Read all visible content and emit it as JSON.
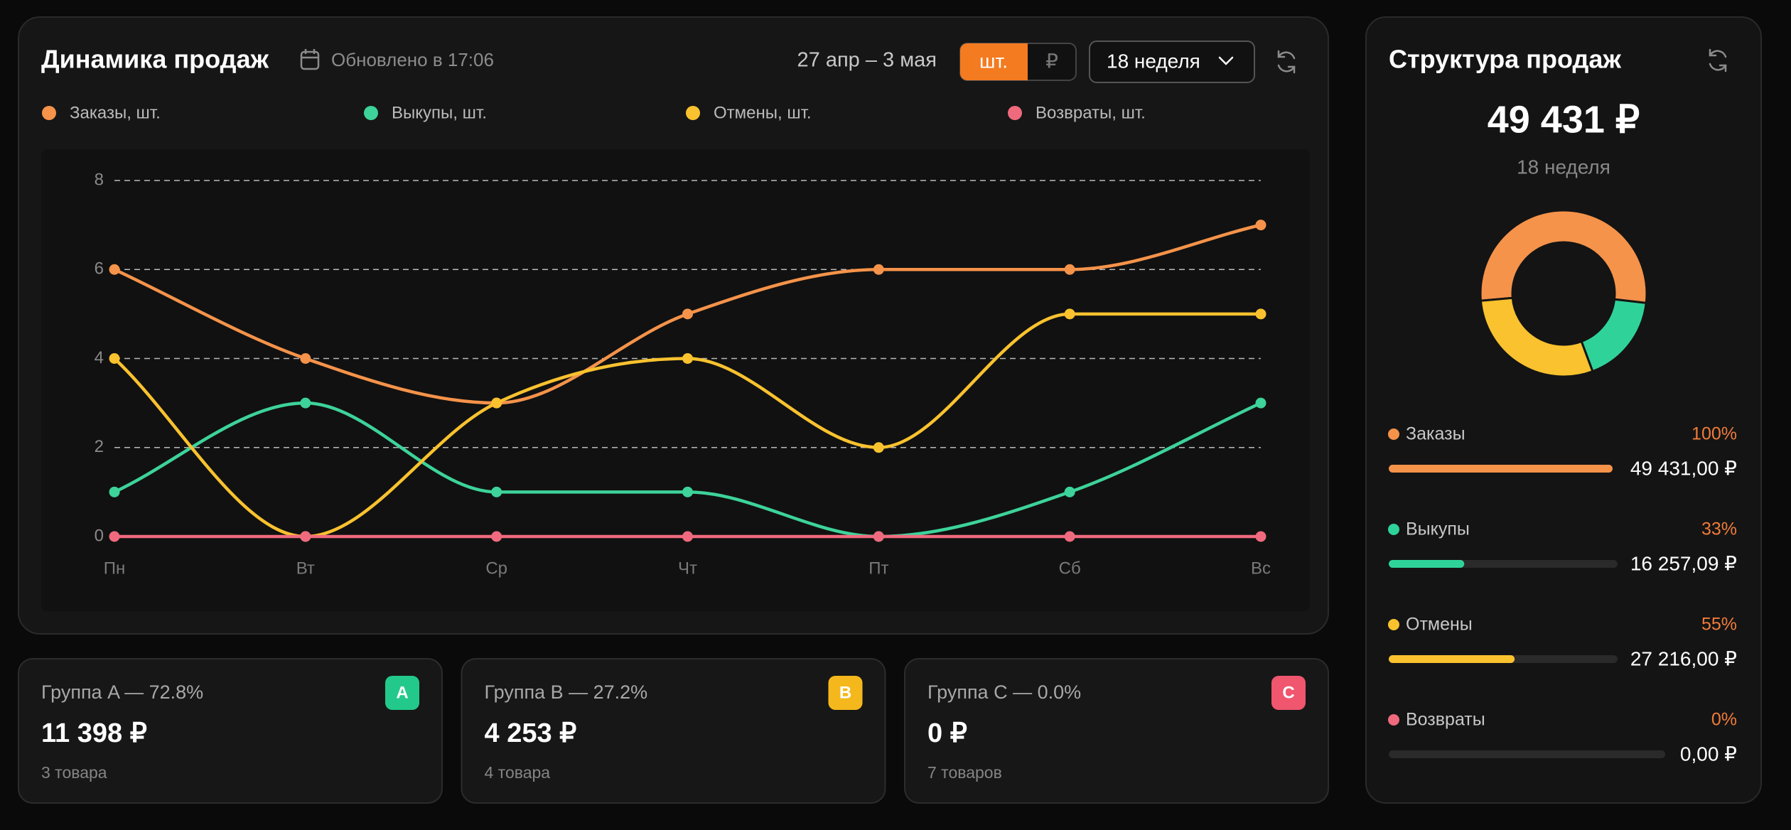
{
  "sales_dynamics": {
    "title": "Динамика продаж",
    "updated": "Обновлено в 17:06",
    "period": "27 апр – 3 мая",
    "unit_toggle": [
      "шт.",
      "₽"
    ],
    "week_select": "18 неделя"
  },
  "chart_data": {
    "type": "line",
    "categories": [
      "Пн",
      "Вт",
      "Ср",
      "Чт",
      "Пт",
      "Сб",
      "Вс"
    ],
    "series": [
      {
        "name": "Заказы, шт.",
        "color": "#f5934a",
        "values": [
          6,
          4,
          3,
          5,
          6,
          6,
          7
        ]
      },
      {
        "name": "Выкупы, шт.",
        "color": "#3dd39a",
        "values": [
          1,
          3,
          1,
          1,
          0,
          1,
          3
        ]
      },
      {
        "name": "Отмены, шт.",
        "color": "#f9c22e",
        "values": [
          4,
          0,
          3,
          4,
          2,
          5,
          5
        ]
      },
      {
        "name": "Возвраты, шт.",
        "color": "#f06a7e",
        "values": [
          0,
          0,
          0,
          0,
          0,
          0,
          0
        ]
      }
    ],
    "ylim": [
      0,
      8
    ],
    "yticks": [
      0,
      2,
      4,
      6,
      8
    ],
    "grid": true
  },
  "groups": [
    {
      "title": "Группа A — 72.8%",
      "amount": "11 398 ₽",
      "items": "3 товара",
      "badge": "A",
      "color": "#23c98a"
    },
    {
      "title": "Группа B — 27.2%",
      "amount": "4 253 ₽",
      "items": "4 товара",
      "badge": "B",
      "color": "#f5b81c"
    },
    {
      "title": "Группа C — 0.0%",
      "amount": "0 ₽",
      "items": "7 товаров",
      "badge": "C",
      "color": "#f0566e"
    }
  ],
  "sales_structure": {
    "title": "Структура продаж",
    "total": "49 431 ₽",
    "period": "18 неделя",
    "items": [
      {
        "name": "Заказы",
        "color": "#f5934a",
        "value": 49431.0,
        "value_label": "49 431,00 ₽",
        "percent": 100,
        "percent_label": "100%"
      },
      {
        "name": "Выкупы",
        "color": "#2fd39a",
        "value": 16257.09,
        "value_label": "16 257,09 ₽",
        "percent": 33,
        "percent_label": "33%"
      },
      {
        "name": "Отмены",
        "color": "#f9c22e",
        "value": 27216.0,
        "value_label": "27 216,00 ₽",
        "percent": 55,
        "percent_label": "55%"
      },
      {
        "name": "Возвраты",
        "color": "#f06a7e",
        "value": 0,
        "value_label": "0,00 ₽",
        "percent": 0,
        "percent_label": "0%"
      }
    ]
  }
}
